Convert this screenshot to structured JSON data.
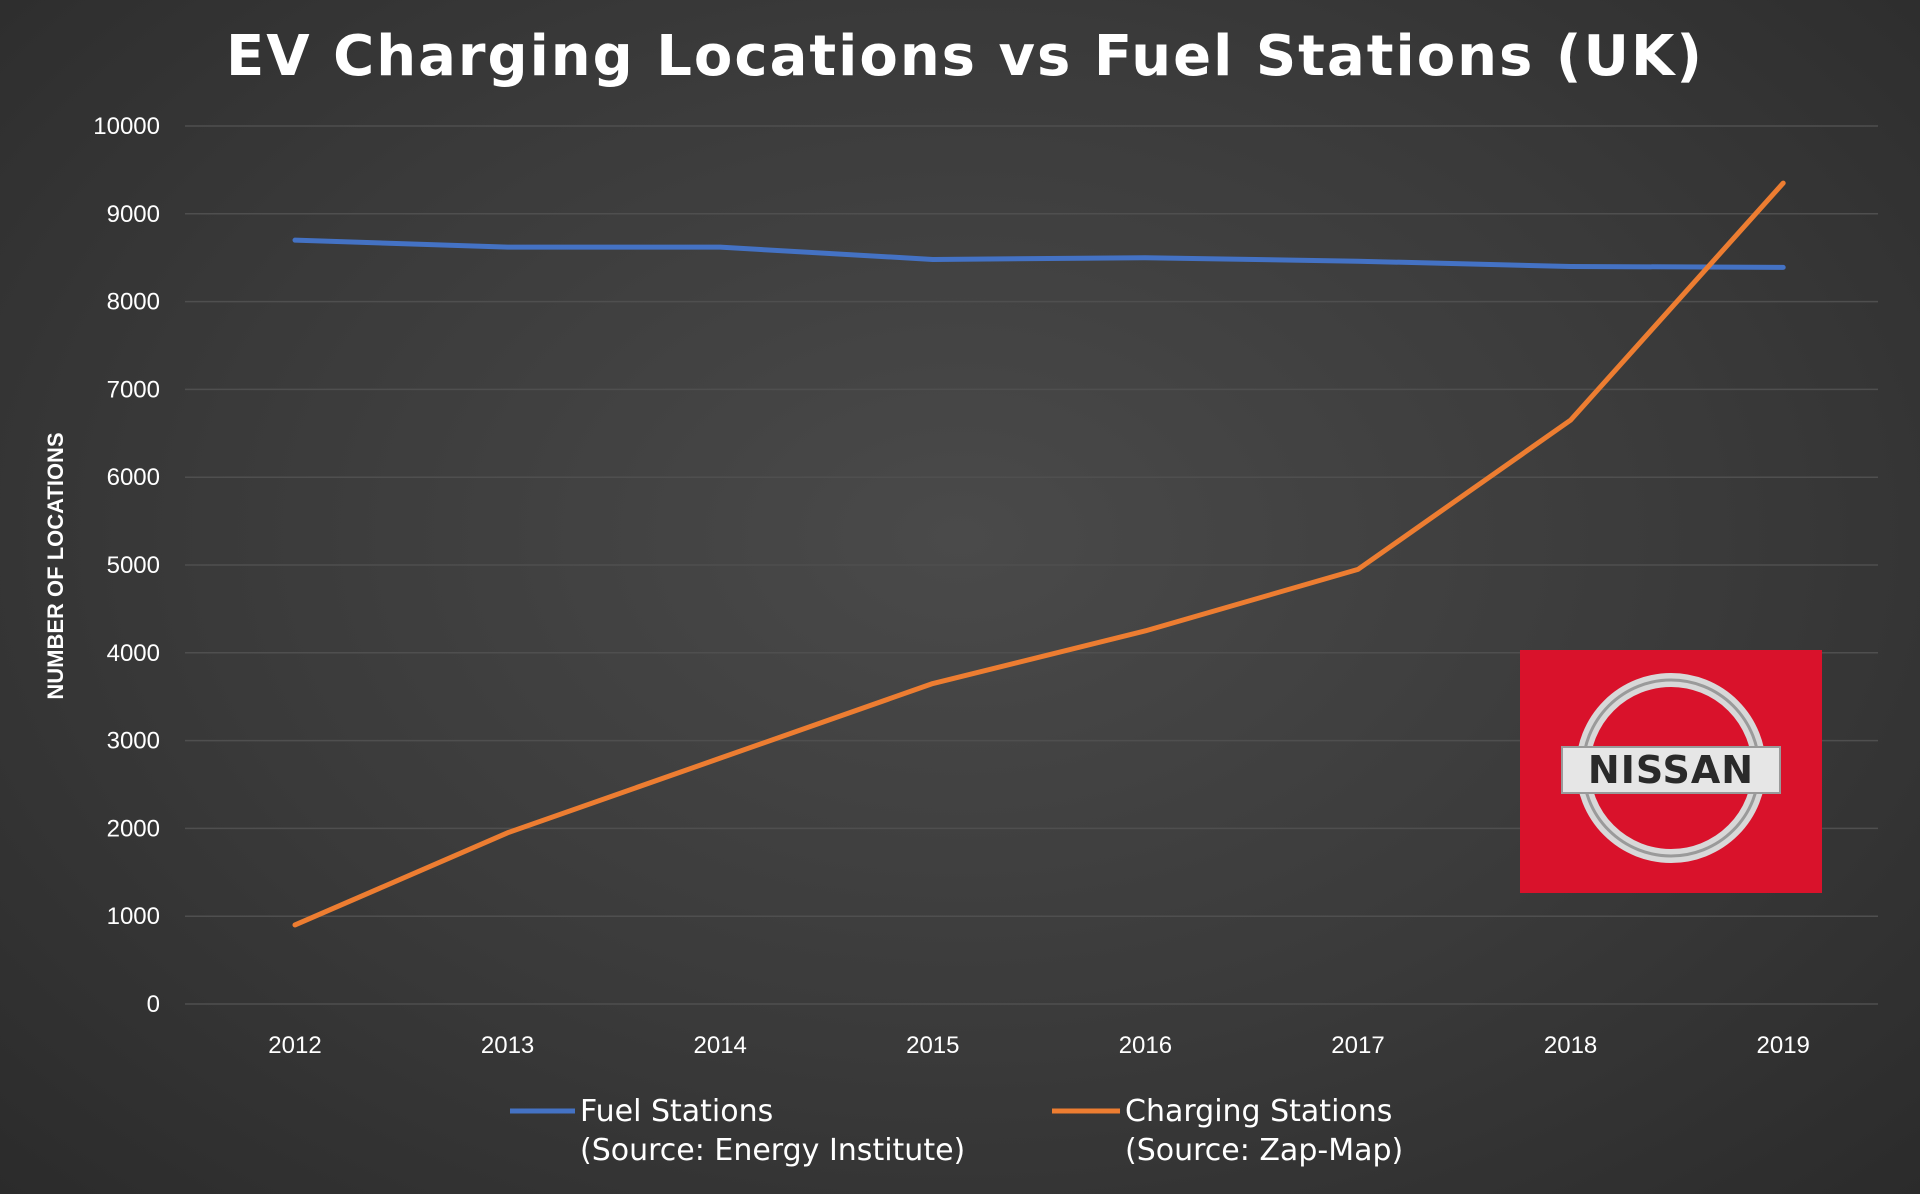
{
  "colors": {
    "fuel": "#4472c4",
    "charging": "#ed7d31",
    "logo_bg": "#d9122b"
  },
  "logo": {
    "text": "NISSAN"
  },
  "chart_data": {
    "type": "line",
    "title": "EV Charging Locations vs Fuel Stations (UK)",
    "xlabel": "",
    "ylabel": "NUMBER OF LOCATIONS",
    "ylim": [
      0,
      10000
    ],
    "yticks": [
      0,
      1000,
      2000,
      3000,
      4000,
      5000,
      6000,
      7000,
      8000,
      9000,
      10000
    ],
    "grid": true,
    "legend_position": "bottom",
    "categories": [
      "2012",
      "2013",
      "2014",
      "2015",
      "2016",
      "2017",
      "2018",
      "2019"
    ],
    "series": [
      {
        "name": "Fuel Stations",
        "name_line2": "(Source: Energy Institute)",
        "color": "#4472c4",
        "values": [
          8700,
          8620,
          8620,
          8480,
          8500,
          8460,
          8400,
          8390
        ]
      },
      {
        "name": "Charging Stations",
        "name_line2": "(Source: Zap-Map)",
        "color": "#ed7d31",
        "values": [
          900,
          1950,
          2800,
          3650,
          4250,
          4950,
          6650,
          9350
        ]
      }
    ]
  }
}
